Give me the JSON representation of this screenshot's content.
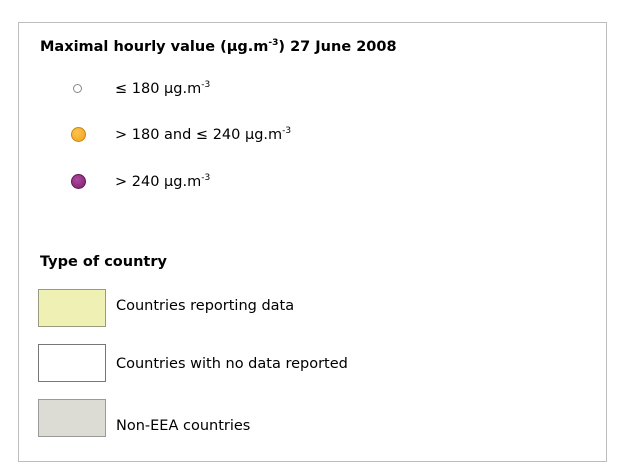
{
  "value_section": {
    "title": {
      "text": "Maximal hourly value (µg.m",
      "sup": "-3",
      "after": ") 27 June 2008"
    },
    "items": [
      {
        "text": "≤ 180 µg.m",
        "sup": "-3"
      },
      {
        "text": "> 180 and ≤ 240 µg.m",
        "sup": "-3"
      },
      {
        "text": "> 240 µg.m",
        "sup": "-3"
      }
    ]
  },
  "country_section": {
    "title": "Type of country",
    "items": [
      "Countries reporting data",
      "Countries with no data reported",
      "Non-EEA countries"
    ]
  }
}
